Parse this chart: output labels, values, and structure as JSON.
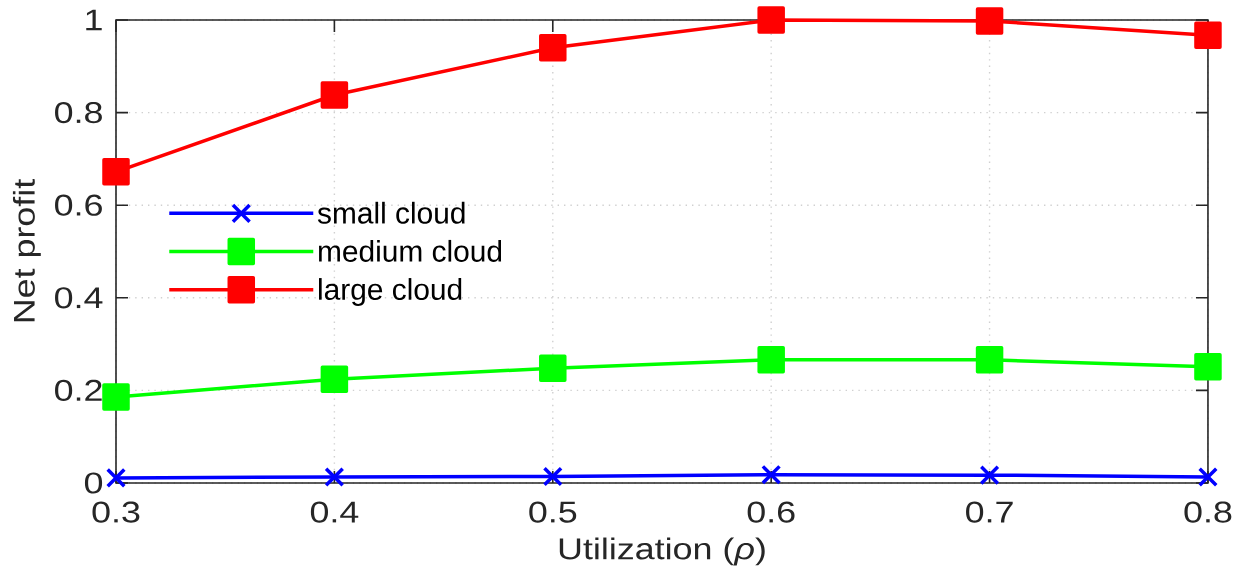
{
  "chart_data": {
    "type": "line",
    "xlabel": "Utilization (*ρ*)",
    "ylabel": "Net profit",
    "x": [
      0.3,
      0.4,
      0.5,
      0.6,
      0.7,
      0.8
    ],
    "series": [
      {
        "name": "small cloud",
        "color": "#0000ff",
        "marker": "cross",
        "values": [
          0.011,
          0.013,
          0.014,
          0.018,
          0.017,
          0.013
        ]
      },
      {
        "name": "medium cloud",
        "color": "#00ff00",
        "marker": "square",
        "values": [
          0.186,
          0.224,
          0.248,
          0.266,
          0.266,
          0.251
        ]
      },
      {
        "name": "large cloud",
        "color": "#ff0000",
        "marker": "square",
        "values": [
          0.672,
          0.838,
          0.94,
          1.0,
          0.998,
          0.967
        ]
      }
    ],
    "xlim": [
      0.3,
      0.8
    ],
    "ylim": [
      0,
      1
    ],
    "xticks": [
      0.3,
      0.4,
      0.5,
      0.6,
      0.7,
      0.8
    ],
    "yticks": [
      0,
      0.2,
      0.4,
      0.6,
      0.8,
      1
    ],
    "grid": true,
    "legend": "left"
  }
}
